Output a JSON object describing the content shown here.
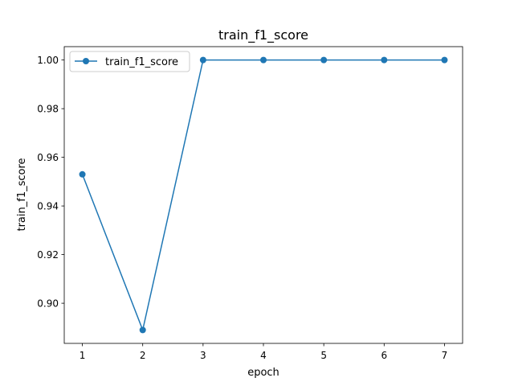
{
  "chart_data": {
    "type": "line",
    "title": "train_f1_score",
    "xlabel": "epoch",
    "ylabel": "train_f1_score",
    "x": [
      1,
      2,
      3,
      4,
      5,
      6,
      7
    ],
    "series": [
      {
        "name": "train_f1_score",
        "values": [
          0.953,
          0.889,
          1.0,
          1.0,
          1.0,
          1.0,
          1.0
        ],
        "color": "#1f77b4",
        "marker": "circle"
      }
    ],
    "xticks": [
      1,
      2,
      3,
      4,
      5,
      6,
      7
    ],
    "xtick_labels": [
      "1",
      "2",
      "3",
      "4",
      "5",
      "6",
      "7"
    ],
    "yticks": [
      0.9,
      0.92,
      0.94,
      0.96,
      0.98,
      1.0
    ],
    "ytick_labels": [
      "0.90",
      "0.92",
      "0.94",
      "0.96",
      "0.98",
      "1.00"
    ],
    "xlim": [
      0.7,
      7.3
    ],
    "ylim": [
      0.8835,
      1.0055
    ],
    "grid": false,
    "legend_position": "upper left"
  }
}
